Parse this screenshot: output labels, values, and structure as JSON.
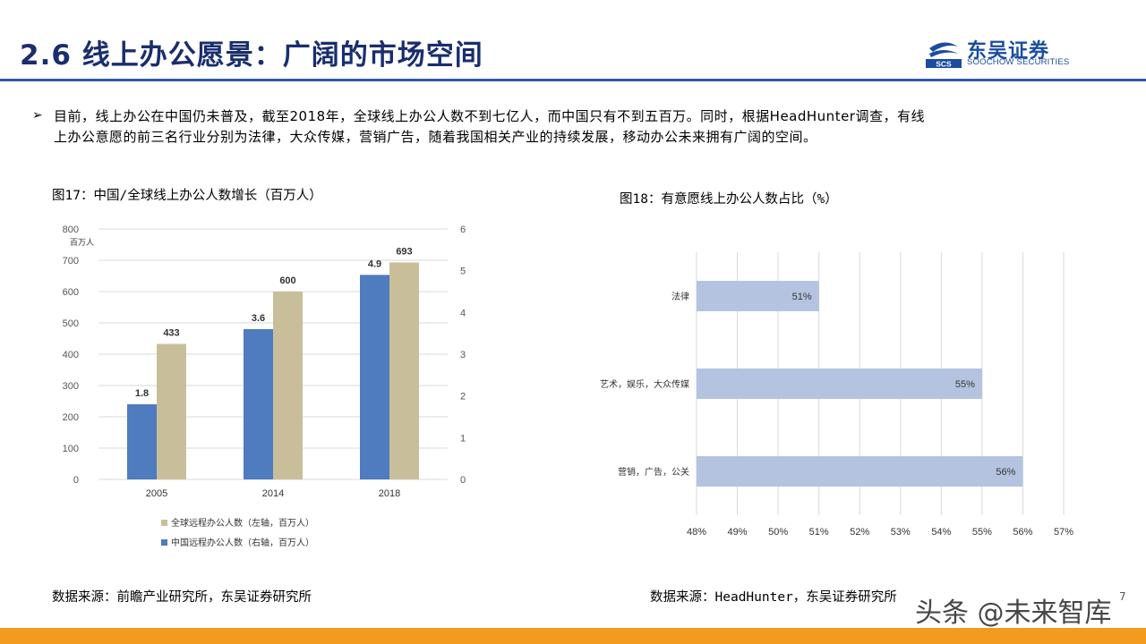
{
  "header": {
    "title": "2.6 线上办公愿景：广阔的市场空间",
    "logo_cn": "东吴证券",
    "logo_en": "SOOCHOW SECURITIES",
    "logo_mark_text": "SCS",
    "accent_color": "#1a2e6e"
  },
  "bullet": {
    "mark": "➢",
    "text_line1": "目前，线上办公在中国仍未普及，截至2018年，全球线上办公人数不到七亿人，而中国只有不到五百万。同时，根据HeadHunter调查，有线",
    "text_line2": "上办公意愿的前三名行业分别为法律，大众传媒，营销广告，随着我国相关产业的持续发展，移动办公未来拥有广阔的空间。"
  },
  "fig17": {
    "title": "图17：中国/全球线上办公人数增长（百万人）",
    "source": "数据来源：前瞻产业研究所，东吴证券研究所"
  },
  "fig18": {
    "title": "图18：有意愿线上办公人数占比（%）",
    "source": "数据来源：HeadHunter，东吴证券研究所"
  },
  "watermark": "头条 @未来智库",
  "page_number": "7",
  "chart_data": [
    {
      "type": "bar",
      "categories": [
        "2005",
        "2014",
        "2018"
      ],
      "y_unit_label": "百万人",
      "ylim_left": [
        0,
        800
      ],
      "yticks_left": [
        "0",
        "100",
        "200",
        "300",
        "400",
        "500",
        "600",
        "700",
        "800"
      ],
      "ylim_right": [
        0,
        6
      ],
      "yticks_right": [
        "0",
        "1",
        "2",
        "3",
        "4",
        "5",
        "6"
      ],
      "grid": true,
      "legend_position": "bottom",
      "series": [
        {
          "name": "全球远程办公人数（左轴，百万人）",
          "axis": "left",
          "values": [
            433,
            600,
            693
          ],
          "labels": [
            "433",
            "600",
            "693"
          ],
          "color": "#c8bf9a"
        },
        {
          "name": "中国远程办公人数（右轴，百万人）",
          "axis": "right",
          "values": [
            1.8,
            3.6,
            4.9
          ],
          "labels": [
            "1.8",
            "3.6",
            "4.9"
          ],
          "color": "#4f7bbf"
        }
      ]
    },
    {
      "type": "bar",
      "orientation": "horizontal",
      "categories": [
        "法律",
        "艺术，娱乐，大众传媒",
        "营销，广告，公关"
      ],
      "values": [
        51,
        55,
        56
      ],
      "labels": [
        "51%",
        "55%",
        "56%"
      ],
      "xlim": [
        48,
        57
      ],
      "xticks": [
        "48%",
        "49%",
        "50%",
        "51%",
        "52%",
        "53%",
        "54%",
        "55%",
        "56%",
        "57%"
      ],
      "grid": true,
      "color": "#b4c4e0"
    }
  ]
}
